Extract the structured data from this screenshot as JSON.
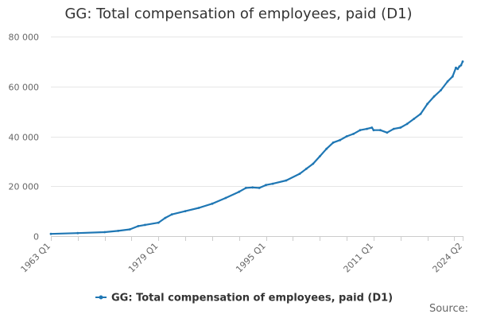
{
  "chart_data": {
    "type": "line",
    "title": "GG: Total compensation of employees, paid (D1)",
    "xlabel": "",
    "ylabel": "",
    "x_start": "1963 Q1",
    "x_end": "2024 Q2",
    "x_tick_labels": [
      "1963 Q1",
      "1979 Q1",
      "1995 Q1",
      "2011 Q1",
      "2024 Q2"
    ],
    "y_tick_labels": [
      "0",
      "20 000",
      "40 000",
      "60 000",
      "80 000"
    ],
    "ylim": [
      0,
      80000
    ],
    "grid": true,
    "legend_position": "bottom",
    "series": [
      {
        "name": "GG: Total compensation of employees, paid (D1)",
        "color": "#1f77b4",
        "points": [
          [
            "1963 Q1",
            900
          ],
          [
            "1967 Q1",
            1200
          ],
          [
            "1971 Q1",
            1600
          ],
          [
            "1973 Q1",
            2100
          ],
          [
            "1974 Q4",
            2700
          ],
          [
            "1976 Q1",
            4000
          ],
          [
            "1977 Q1",
            4500
          ],
          [
            "1979 Q1",
            5400
          ],
          [
            "1980 Q1",
            7300
          ],
          [
            "1981 Q1",
            8700
          ],
          [
            "1983 Q1",
            10000
          ],
          [
            "1985 Q1",
            11300
          ],
          [
            "1987 Q1",
            13000
          ],
          [
            "1989 Q1",
            15300
          ],
          [
            "1991 Q1",
            17800
          ],
          [
            "1992 Q1",
            19300
          ],
          [
            "1993 Q1",
            19500
          ],
          [
            "1994 Q1",
            19300
          ],
          [
            "1995 Q1",
            20500
          ],
          [
            "1996 Q1",
            21000
          ],
          [
            "1998 Q1",
            22300
          ],
          [
            "2000 Q1",
            25000
          ],
          [
            "2001 Q1",
            27000
          ],
          [
            "2002 Q1",
            29000
          ],
          [
            "2003 Q1",
            32000
          ],
          [
            "2004 Q1",
            35000
          ],
          [
            "2005 Q1",
            37500
          ],
          [
            "2006 Q1",
            38500
          ],
          [
            "2007 Q1",
            40000
          ],
          [
            "2008 Q1",
            41000
          ],
          [
            "2009 Q1",
            42500
          ],
          [
            "2010 Q1",
            43000
          ],
          [
            "2010 Q4",
            43500
          ],
          [
            "2011 Q1",
            42500
          ],
          [
            "2012 Q1",
            42500
          ],
          [
            "2013 Q1",
            41500
          ],
          [
            "2014 Q1",
            43000
          ],
          [
            "2015 Q1",
            43500
          ],
          [
            "2016 Q1",
            45000
          ],
          [
            "2017 Q1",
            47000
          ],
          [
            "2018 Q1",
            49000
          ],
          [
            "2019 Q1",
            53000
          ],
          [
            "2020 Q1",
            56000
          ],
          [
            "2021 Q1",
            58500
          ],
          [
            "2022 Q1",
            62000
          ],
          [
            "2022 Q4",
            64000
          ],
          [
            "2023 Q2",
            67500
          ],
          [
            "2023 Q3",
            67000
          ],
          [
            "2023 Q4",
            68000
          ],
          [
            "2024 Q1",
            68500
          ],
          [
            "2024 Q2",
            70000
          ]
        ]
      }
    ]
  },
  "footer": {
    "legend_label": "GG: Total compensation of employees, paid (D1)",
    "source_label": "Source:"
  }
}
